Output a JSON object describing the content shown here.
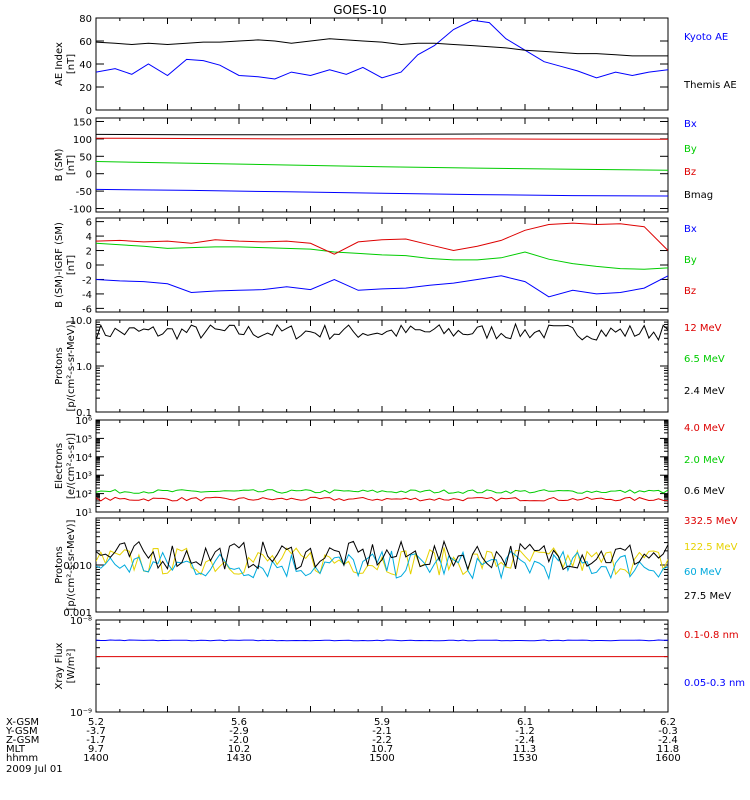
{
  "title": "GOES-10",
  "colors": {
    "black": "#000000",
    "blue": "#0000ff",
    "red": "#dd0000",
    "green": "#00cc00",
    "cyan": "#00aadd",
    "yellow": "#e6d200"
  },
  "chart_data": [
    {
      "type": "line",
      "ylabel": [
        "AE Index",
        "[nT]"
      ],
      "ylim": [
        0,
        80
      ],
      "yticks": [
        0,
        20,
        40,
        60,
        80
      ],
      "ytick_labels": [
        "0",
        "20",
        "40",
        "60",
        "80"
      ],
      "x_minutes": [
        0,
        8,
        15,
        22,
        30,
        38,
        45,
        52,
        60,
        68,
        75,
        82,
        90,
        98,
        105,
        112,
        120,
        128,
        135,
        142,
        150,
        158,
        165,
        172,
        180,
        188,
        195,
        202,
        210,
        218,
        225,
        232,
        240
      ],
      "series": [
        {
          "name": "Kyoto AE",
          "color": "blue",
          "values": [
            33,
            36,
            31,
            40,
            30,
            44,
            43,
            39,
            30,
            29,
            27,
            33,
            30,
            35,
            31,
            37,
            28,
            33,
            48,
            56,
            70,
            78,
            76,
            62,
            52,
            42,
            38,
            34,
            28,
            33,
            30,
            33,
            35
          ]
        },
        {
          "name": "Themis AE",
          "color": "black",
          "values": [
            59,
            58,
            57,
            58,
            57,
            58,
            59,
            59,
            60,
            61,
            60,
            58,
            60,
            62,
            61,
            60,
            59,
            57,
            58,
            58,
            57,
            56,
            55,
            54,
            52,
            51,
            50,
            49,
            49,
            48,
            47,
            47,
            47
          ]
        }
      ]
    },
    {
      "type": "line",
      "ylabel": [
        "B (SM)",
        "[nT]"
      ],
      "ylim": [
        -110,
        160
      ],
      "yticks": [
        -100,
        -50,
        0,
        50,
        100,
        150
      ],
      "ytick_labels": [
        "-100",
        "-50",
        "0",
        "50",
        "100",
        "150"
      ],
      "x_minutes": [
        0,
        40,
        80,
        120,
        160,
        200,
        240
      ],
      "series": [
        {
          "name": "Bx",
          "color": "blue",
          "values": [
            -45,
            -48,
            -52,
            -56,
            -60,
            -63,
            -64
          ]
        },
        {
          "name": "By",
          "color": "green",
          "values": [
            35,
            30,
            25,
            20,
            16,
            13,
            10
          ]
        },
        {
          "name": "Bz",
          "color": "red",
          "values": [
            102,
            101,
            100,
            100,
            100,
            99,
            99
          ]
        },
        {
          "name": "Bmag",
          "color": "black",
          "values": [
            113,
            112,
            112,
            113,
            114,
            115,
            114
          ]
        }
      ]
    },
    {
      "type": "line",
      "ylabel": [
        "B (SM)-IGRF (SM)",
        "[nT]"
      ],
      "ylim": [
        -6.5,
        6.5
      ],
      "yticks": [
        -6,
        -4,
        -2,
        0,
        2,
        4,
        6
      ],
      "ytick_labels": [
        "-6",
        "-4",
        "-2",
        "0",
        "2",
        "4",
        "6"
      ],
      "x_minutes": [
        0,
        10,
        20,
        30,
        40,
        50,
        60,
        70,
        80,
        90,
        100,
        110,
        120,
        130,
        140,
        150,
        160,
        170,
        180,
        190,
        200,
        210,
        220,
        230,
        240
      ],
      "series": [
        {
          "name": "Bx",
          "color": "blue",
          "values": [
            -2,
            -2.2,
            -2.3,
            -2.6,
            -3.8,
            -3.6,
            -3.5,
            -3.4,
            -3,
            -3.4,
            -2,
            -3.5,
            -3.3,
            -3.2,
            -2.8,
            -2.5,
            -2.0,
            -1.5,
            -2.3,
            -4.4,
            -3.5,
            -4,
            -3.8,
            -3.2,
            -1.5
          ]
        },
        {
          "name": "By",
          "color": "green",
          "values": [
            3,
            2.8,
            2.6,
            2.3,
            2.4,
            2.5,
            2.5,
            2.4,
            2.3,
            2.2,
            1.8,
            1.6,
            1.4,
            1.3,
            0.9,
            0.7,
            0.7,
            1.0,
            1.8,
            0.8,
            0.2,
            -0.2,
            -0.5,
            -0.6,
            -0.4
          ]
        },
        {
          "name": "Bz",
          "color": "red",
          "values": [
            3.3,
            3.4,
            3.2,
            3.3,
            3.0,
            3.5,
            3.3,
            3.2,
            3.3,
            3.0,
            1.5,
            3.2,
            3.5,
            3.6,
            2.8,
            2.0,
            2.6,
            3.4,
            4.8,
            5.6,
            5.8,
            5.6,
            5.7,
            5.3,
            2.0
          ]
        }
      ]
    },
    {
      "type": "line",
      "log": true,
      "ylabel": [
        "Protons",
        "[p/(cm²-s-sr-MeV)]"
      ],
      "ylim": [
        0.1,
        10
      ],
      "yticks": [
        0.1,
        1,
        10
      ],
      "ytick_labels": [
        "0.1",
        "1.0",
        "10.0"
      ],
      "series": [
        {
          "name": "12 MeV",
          "color": "red",
          "values": []
        },
        {
          "name": "6.5 MeV",
          "color": "green",
          "values": []
        },
        {
          "name": "2.4 MeV",
          "color": "black",
          "values": []
        }
      ]
    },
    {
      "type": "line",
      "log": true,
      "ylabel": [
        "Electrons",
        "[e/(cm²-s-sr)]"
      ],
      "ylim": [
        10,
        1000000
      ],
      "yticks": [
        10,
        100,
        1000,
        10000,
        100000,
        1000000
      ],
      "ytick_labels": [
        "10¹",
        "10²",
        "10³",
        "10⁴",
        "10⁵",
        "10⁶"
      ],
      "series": [
        {
          "name": "4.0 MeV",
          "color": "red",
          "values": []
        },
        {
          "name": "2.0 MeV",
          "color": "green",
          "values": []
        },
        {
          "name": "0.6 MeV",
          "color": "black",
          "values": []
        }
      ]
    },
    {
      "type": "line",
      "log": true,
      "ylabel": [
        "Protons",
        "[p/(cm²-s-sr-MeV)]"
      ],
      "ylim": [
        0.001,
        0.1
      ],
      "yticks": [
        0.001,
        0.01
      ],
      "ytick_labels": [
        "0.001",
        "0.010"
      ],
      "series": [
        {
          "name": "332.5 MeV",
          "color": "red",
          "values": []
        },
        {
          "name": "122.5 MeV",
          "color": "yellow",
          "values": []
        },
        {
          "name": "60 MeV",
          "color": "cyan",
          "values": []
        },
        {
          "name": "27.5 MeV",
          "color": "black",
          "values": []
        }
      ]
    },
    {
      "type": "line",
      "log": true,
      "ylabel": [
        "Xray Flux",
        "[W/m²]"
      ],
      "ylim": [
        1e-09,
        1e-08
      ],
      "yticks": [
        1e-09,
        1e-08
      ],
      "ytick_labels": [
        "10⁻⁹",
        "10⁻⁸"
      ],
      "series": [
        {
          "name": "0.1-0.8 nm",
          "color": "red",
          "values": []
        },
        {
          "name": "0.05-0.3 nm",
          "color": "blue",
          "values": []
        }
      ]
    }
  ],
  "ephemeris": {
    "row_labels": [
      "X-GSM",
      "Y-GSM",
      "Z-GSM",
      "MLT",
      "hhmm"
    ],
    "x_minutes": [
      0,
      60,
      120,
      180,
      240
    ],
    "columns": [
      [
        "5.2",
        "-3.7",
        "-1.7",
        "9.7",
        "1400"
      ],
      [
        "5.6",
        "-2.9",
        "-2.0",
        "10.2",
        "1430"
      ],
      [
        "5.9",
        "-2.1",
        "-2.2",
        "10.7",
        "1500"
      ],
      [
        "6.1",
        "-1.2",
        "-2.4",
        "11.3",
        "1530"
      ],
      [
        "6.2",
        "-0.3",
        "-2.4",
        "11.8",
        "1600"
      ]
    ],
    "date": "2009 Jul 01"
  }
}
